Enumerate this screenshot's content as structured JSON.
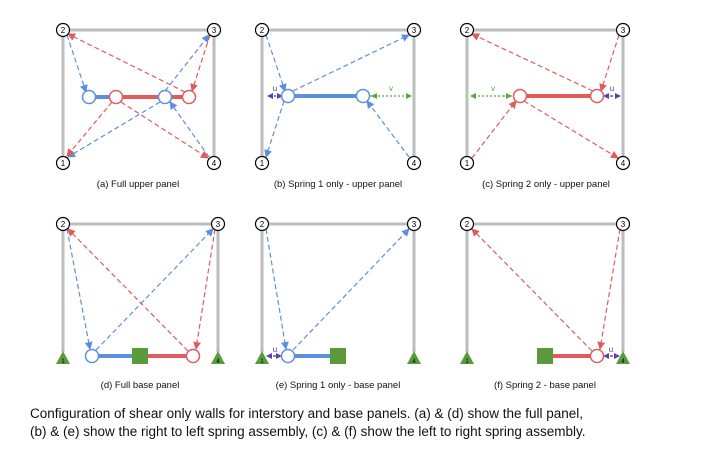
{
  "panels": [
    {
      "id": "a",
      "label": "(a)  Full upper panel"
    },
    {
      "id": "b",
      "label": "(b) Spring 1 only - upper panel"
    },
    {
      "id": "c",
      "label": "(c) Spring 2 only - upper panel"
    },
    {
      "id": "d",
      "label": "(d) Full base panel"
    },
    {
      "id": "e",
      "label": "(e) Spring 1 only - base panel"
    },
    {
      "id": "f",
      "label": "(f) Spring 2 - base panel"
    }
  ],
  "node_labels": [
    "1",
    "2",
    "3",
    "4"
  ],
  "displacement_labels": {
    "u": "u",
    "v": "v"
  },
  "colors": {
    "frame": "#bdbdbd",
    "blue": "#5b8fe0",
    "red": "#e05c5c",
    "green": "#5a9a3c",
    "dof_purple": "#5a3fb0",
    "dof_green": "#58a83a"
  },
  "caption": {
    "line1": "Configuration of shear only walls for interstory and base panels. (a)  & (d) show the full panel,",
    "line2": "(b) & (e) show the right to left spring assembly, (c) & (f) show the left to right spring assembly."
  }
}
